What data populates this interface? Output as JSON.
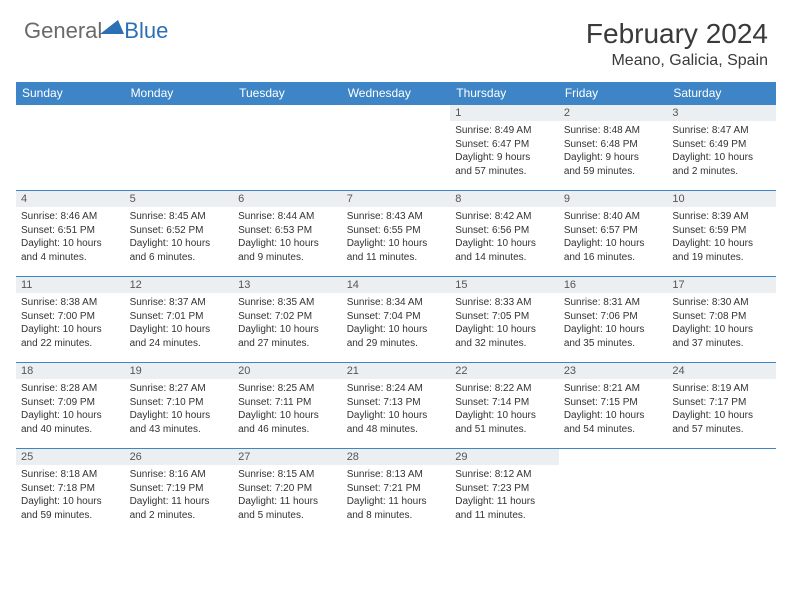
{
  "logo": {
    "general": "General",
    "blue": "Blue"
  },
  "title": {
    "month": "February 2024",
    "location": "Meano, Galicia, Spain"
  },
  "colors": {
    "header_bg": "#3d85c6",
    "header_fg": "#ffffff",
    "daynum_bg": "#eceff2",
    "border": "#3d85c6",
    "logo_general": "#6a6a6a",
    "logo_blue": "#2d6fb5"
  },
  "daysOfWeek": [
    "Sunday",
    "Monday",
    "Tuesday",
    "Wednesday",
    "Thursday",
    "Friday",
    "Saturday"
  ],
  "weeks": [
    [
      {
        "empty": true
      },
      {
        "empty": true
      },
      {
        "empty": true
      },
      {
        "empty": true
      },
      {
        "n": "1",
        "sr": "Sunrise: 8:49 AM",
        "ss": "Sunset: 6:47 PM",
        "dl1": "Daylight: 9 hours",
        "dl2": "and 57 minutes."
      },
      {
        "n": "2",
        "sr": "Sunrise: 8:48 AM",
        "ss": "Sunset: 6:48 PM",
        "dl1": "Daylight: 9 hours",
        "dl2": "and 59 minutes."
      },
      {
        "n": "3",
        "sr": "Sunrise: 8:47 AM",
        "ss": "Sunset: 6:49 PM",
        "dl1": "Daylight: 10 hours",
        "dl2": "and 2 minutes."
      }
    ],
    [
      {
        "n": "4",
        "sr": "Sunrise: 8:46 AM",
        "ss": "Sunset: 6:51 PM",
        "dl1": "Daylight: 10 hours",
        "dl2": "and 4 minutes."
      },
      {
        "n": "5",
        "sr": "Sunrise: 8:45 AM",
        "ss": "Sunset: 6:52 PM",
        "dl1": "Daylight: 10 hours",
        "dl2": "and 6 minutes."
      },
      {
        "n": "6",
        "sr": "Sunrise: 8:44 AM",
        "ss": "Sunset: 6:53 PM",
        "dl1": "Daylight: 10 hours",
        "dl2": "and 9 minutes."
      },
      {
        "n": "7",
        "sr": "Sunrise: 8:43 AM",
        "ss": "Sunset: 6:55 PM",
        "dl1": "Daylight: 10 hours",
        "dl2": "and 11 minutes."
      },
      {
        "n": "8",
        "sr": "Sunrise: 8:42 AM",
        "ss": "Sunset: 6:56 PM",
        "dl1": "Daylight: 10 hours",
        "dl2": "and 14 minutes."
      },
      {
        "n": "9",
        "sr": "Sunrise: 8:40 AM",
        "ss": "Sunset: 6:57 PM",
        "dl1": "Daylight: 10 hours",
        "dl2": "and 16 minutes."
      },
      {
        "n": "10",
        "sr": "Sunrise: 8:39 AM",
        "ss": "Sunset: 6:59 PM",
        "dl1": "Daylight: 10 hours",
        "dl2": "and 19 minutes."
      }
    ],
    [
      {
        "n": "11",
        "sr": "Sunrise: 8:38 AM",
        "ss": "Sunset: 7:00 PM",
        "dl1": "Daylight: 10 hours",
        "dl2": "and 22 minutes."
      },
      {
        "n": "12",
        "sr": "Sunrise: 8:37 AM",
        "ss": "Sunset: 7:01 PM",
        "dl1": "Daylight: 10 hours",
        "dl2": "and 24 minutes."
      },
      {
        "n": "13",
        "sr": "Sunrise: 8:35 AM",
        "ss": "Sunset: 7:02 PM",
        "dl1": "Daylight: 10 hours",
        "dl2": "and 27 minutes."
      },
      {
        "n": "14",
        "sr": "Sunrise: 8:34 AM",
        "ss": "Sunset: 7:04 PM",
        "dl1": "Daylight: 10 hours",
        "dl2": "and 29 minutes."
      },
      {
        "n": "15",
        "sr": "Sunrise: 8:33 AM",
        "ss": "Sunset: 7:05 PM",
        "dl1": "Daylight: 10 hours",
        "dl2": "and 32 minutes."
      },
      {
        "n": "16",
        "sr": "Sunrise: 8:31 AM",
        "ss": "Sunset: 7:06 PM",
        "dl1": "Daylight: 10 hours",
        "dl2": "and 35 minutes."
      },
      {
        "n": "17",
        "sr": "Sunrise: 8:30 AM",
        "ss": "Sunset: 7:08 PM",
        "dl1": "Daylight: 10 hours",
        "dl2": "and 37 minutes."
      }
    ],
    [
      {
        "n": "18",
        "sr": "Sunrise: 8:28 AM",
        "ss": "Sunset: 7:09 PM",
        "dl1": "Daylight: 10 hours",
        "dl2": "and 40 minutes."
      },
      {
        "n": "19",
        "sr": "Sunrise: 8:27 AM",
        "ss": "Sunset: 7:10 PM",
        "dl1": "Daylight: 10 hours",
        "dl2": "and 43 minutes."
      },
      {
        "n": "20",
        "sr": "Sunrise: 8:25 AM",
        "ss": "Sunset: 7:11 PM",
        "dl1": "Daylight: 10 hours",
        "dl2": "and 46 minutes."
      },
      {
        "n": "21",
        "sr": "Sunrise: 8:24 AM",
        "ss": "Sunset: 7:13 PM",
        "dl1": "Daylight: 10 hours",
        "dl2": "and 48 minutes."
      },
      {
        "n": "22",
        "sr": "Sunrise: 8:22 AM",
        "ss": "Sunset: 7:14 PM",
        "dl1": "Daylight: 10 hours",
        "dl2": "and 51 minutes."
      },
      {
        "n": "23",
        "sr": "Sunrise: 8:21 AM",
        "ss": "Sunset: 7:15 PM",
        "dl1": "Daylight: 10 hours",
        "dl2": "and 54 minutes."
      },
      {
        "n": "24",
        "sr": "Sunrise: 8:19 AM",
        "ss": "Sunset: 7:17 PM",
        "dl1": "Daylight: 10 hours",
        "dl2": "and 57 minutes."
      }
    ],
    [
      {
        "n": "25",
        "sr": "Sunrise: 8:18 AM",
        "ss": "Sunset: 7:18 PM",
        "dl1": "Daylight: 10 hours",
        "dl2": "and 59 minutes."
      },
      {
        "n": "26",
        "sr": "Sunrise: 8:16 AM",
        "ss": "Sunset: 7:19 PM",
        "dl1": "Daylight: 11 hours",
        "dl2": "and 2 minutes."
      },
      {
        "n": "27",
        "sr": "Sunrise: 8:15 AM",
        "ss": "Sunset: 7:20 PM",
        "dl1": "Daylight: 11 hours",
        "dl2": "and 5 minutes."
      },
      {
        "n": "28",
        "sr": "Sunrise: 8:13 AM",
        "ss": "Sunset: 7:21 PM",
        "dl1": "Daylight: 11 hours",
        "dl2": "and 8 minutes."
      },
      {
        "n": "29",
        "sr": "Sunrise: 8:12 AM",
        "ss": "Sunset: 7:23 PM",
        "dl1": "Daylight: 11 hours",
        "dl2": "and 11 minutes."
      },
      {
        "empty": true
      },
      {
        "empty": true
      }
    ]
  ]
}
